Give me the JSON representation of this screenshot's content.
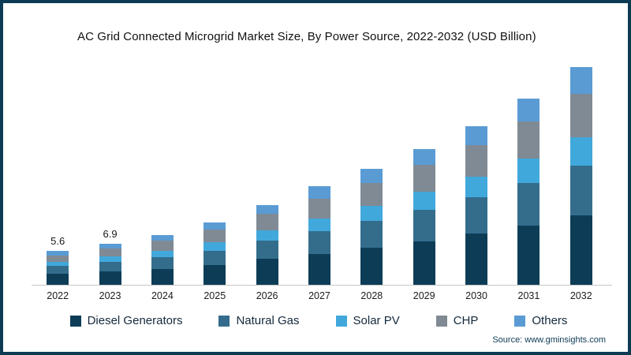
{
  "title": "AC Grid Connected Microgrid Market Size, By Power Source, 2022-2032 (USD Billion)",
  "source": "Source: www.gminsights.com",
  "chart_data": {
    "type": "bar",
    "stacked": true,
    "title": "AC Grid Connected Microgrid Market Size, By Power Source, 2022-2032 (USD Billion)",
    "xlabel": "",
    "ylabel": "USD Billion",
    "ylim": [
      0,
      38
    ],
    "grid": false,
    "legend_position": "bottom",
    "categories": [
      "2022",
      "2023",
      "2024",
      "2025",
      "2026",
      "2027",
      "2028",
      "2029",
      "2030",
      "2031",
      "2032"
    ],
    "series": [
      {
        "name": "Diesel Generators",
        "color": "#0d3d56",
        "values": [
          1.8,
          2.2,
          2.7,
          3.3,
          4.3,
          5.2,
          6.2,
          7.3,
          8.5,
          9.9,
          11.6
        ]
      },
      {
        "name": "Natural Gas",
        "color": "#346d8c",
        "values": [
          1.3,
          1.6,
          1.9,
          2.4,
          3.1,
          3.8,
          4.4,
          5.2,
          6.1,
          7.1,
          8.3
        ]
      },
      {
        "name": "Solar PV",
        "color": "#41a8dc",
        "values": [
          0.7,
          0.9,
          1.1,
          1.4,
          1.7,
          2.1,
          2.5,
          3.0,
          3.4,
          4.0,
          4.7
        ]
      },
      {
        "name": "CHP",
        "color": "#808a94",
        "values": [
          1.1,
          1.4,
          1.7,
          2.1,
          2.7,
          3.3,
          3.9,
          4.5,
          5.3,
          6.2,
          7.3
        ]
      },
      {
        "name": "Others",
        "color": "#5a9bd4",
        "values": [
          0.7,
          0.8,
          0.9,
          1.2,
          1.5,
          2.0,
          2.3,
          2.7,
          3.2,
          3.8,
          4.4
        ]
      }
    ],
    "totals": [
      5.6,
      6.9,
      8.3,
      10.4,
      13.3,
      16.4,
      19.3,
      22.7,
      26.5,
      31.0,
      36.3
    ],
    "visible_data_labels": {
      "2022": "5.6",
      "2023": "6.9"
    }
  }
}
